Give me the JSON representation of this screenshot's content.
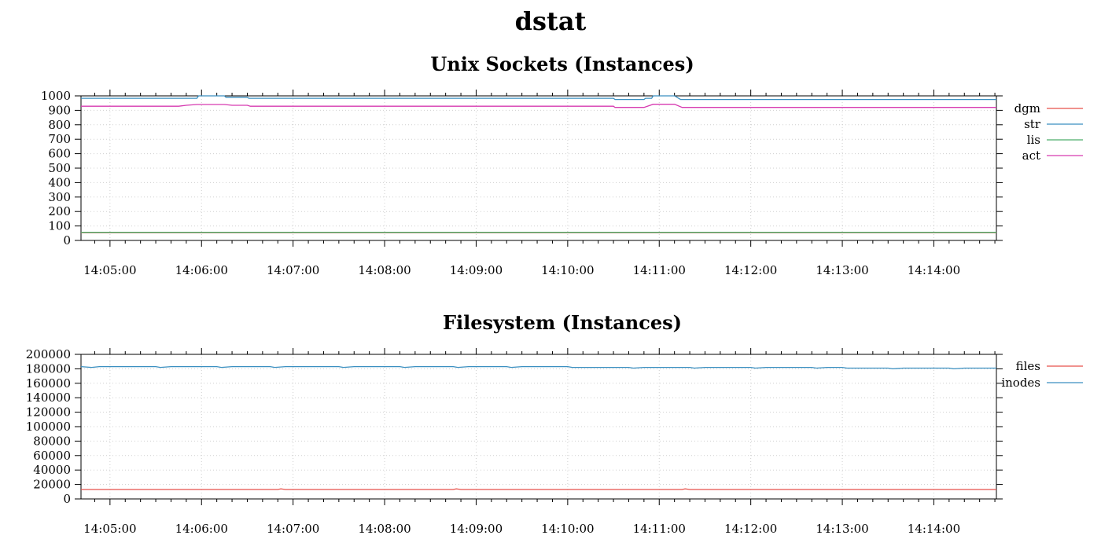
{
  "title": "dstat",
  "colors": {
    "red": "#e8514a",
    "blue": "#3a8fc0",
    "green": "#4cae6b",
    "magenta": "#d63ab0"
  },
  "chart_data": [
    {
      "type": "line",
      "title": "Unix Sockets (Instances)",
      "xlabel": "",
      "ylabel": "",
      "x_range": [
        "14:04:41",
        "14:14:41"
      ],
      "ylim": [
        0,
        1000
      ],
      "y_ticks": [
        "0",
        "100",
        "200",
        "300",
        "400",
        "500",
        "600",
        "700",
        "800",
        "900",
        "1000"
      ],
      "x_ticks": [
        "14:05:00",
        "14:06:00",
        "14:07:00",
        "14:08:00",
        "14:09:00",
        "14:10:00",
        "14:11:00",
        "14:12:00",
        "14:13:00",
        "14:14:00"
      ],
      "grid": true,
      "legend_position": "right",
      "series": [
        {
          "name": "dgm",
          "color": "#e8514a",
          "points": [
            [
              "14:04:41",
              54
            ],
            [
              "14:14:41",
              54
            ]
          ]
        },
        {
          "name": "str",
          "color": "#3a8fc0",
          "points": [
            [
              "14:04:41",
              983
            ],
            [
              "14:05:57",
              983
            ],
            [
              "14:05:58",
              1000
            ],
            [
              "14:06:15",
              1000
            ],
            [
              "14:06:16",
              990
            ],
            [
              "14:06:30",
              990
            ],
            [
              "14:06:31",
              983
            ],
            [
              "14:10:30",
              983
            ],
            [
              "14:10:31",
              975
            ],
            [
              "14:10:50",
              975
            ],
            [
              "14:10:51",
              983
            ],
            [
              "14:10:55",
              983
            ],
            [
              "14:10:56",
              1000
            ],
            [
              "14:11:10",
              1000
            ],
            [
              "14:11:14",
              975
            ],
            [
              "14:14:41",
              975
            ]
          ]
        },
        {
          "name": "lis",
          "color": "#4cae6b",
          "points": [
            [
              "14:04:41",
              56
            ],
            [
              "14:14:41",
              56
            ]
          ]
        },
        {
          "name": "act",
          "color": "#d63ab0",
          "points": [
            [
              "14:04:41",
              928
            ],
            [
              "14:05:45",
              928
            ],
            [
              "14:05:50",
              935
            ],
            [
              "14:05:57",
              940
            ],
            [
              "14:06:15",
              940
            ],
            [
              "14:06:20",
              935
            ],
            [
              "14:06:30",
              935
            ],
            [
              "14:06:32",
              928
            ],
            [
              "14:10:30",
              928
            ],
            [
              "14:10:31",
              920
            ],
            [
              "14:10:50",
              920
            ],
            [
              "14:10:56",
              942
            ],
            [
              "14:11:10",
              942
            ],
            [
              "14:11:15",
              920
            ],
            [
              "14:14:41",
              920
            ]
          ]
        }
      ]
    },
    {
      "type": "line",
      "title": "Filesystem (Instances)",
      "xlabel": "",
      "ylabel": "",
      "x_range": [
        "14:04:41",
        "14:14:41"
      ],
      "ylim": [
        0,
        200000
      ],
      "y_ticks": [
        "0",
        "20000",
        "40000",
        "60000",
        "80000",
        "100000",
        "120000",
        "140000",
        "160000",
        "180000",
        "200000"
      ],
      "x_ticks": [
        "14:05:00",
        "14:06:00",
        "14:07:00",
        "14:08:00",
        "14:09:00",
        "14:10:00",
        "14:11:00",
        "14:12:00",
        "14:13:00",
        "14:14:00"
      ],
      "grid": true,
      "legend_position": "right",
      "series": [
        {
          "name": "files",
          "color": "#e8514a",
          "points": [
            [
              "14:04:41",
              13000
            ],
            [
              "14:06:50",
              13000
            ],
            [
              "14:06:52",
              14000
            ],
            [
              "14:06:55",
              13000
            ],
            [
              "14:08:45",
              13000
            ],
            [
              "14:08:47",
              14000
            ],
            [
              "14:08:50",
              13000
            ],
            [
              "14:11:15",
              13000
            ],
            [
              "14:11:17",
              14000
            ],
            [
              "14:11:20",
              13000
            ],
            [
              "14:14:41",
              13000
            ]
          ]
        },
        {
          "name": "inodes",
          "color": "#3a8fc0",
          "points": [
            [
              "14:04:41",
              183000
            ],
            [
              "14:04:48",
              182000
            ],
            [
              "14:04:53",
              183000
            ],
            [
              "14:05:30",
              183000
            ],
            [
              "14:05:33",
              182000
            ],
            [
              "14:05:40",
              183000
            ],
            [
              "14:06:10",
              183000
            ],
            [
              "14:06:13",
              182000
            ],
            [
              "14:06:20",
              183000
            ],
            [
              "14:06:45",
              183000
            ],
            [
              "14:06:48",
              182000
            ],
            [
              "14:06:55",
              183000
            ],
            [
              "14:07:30",
              183000
            ],
            [
              "14:07:33",
              182000
            ],
            [
              "14:07:40",
              183000
            ],
            [
              "14:08:10",
              183000
            ],
            [
              "14:08:13",
              182000
            ],
            [
              "14:08:20",
              183000
            ],
            [
              "14:08:45",
              183000
            ],
            [
              "14:08:48",
              182000
            ],
            [
              "14:08:55",
              183000
            ],
            [
              "14:09:20",
              183000
            ],
            [
              "14:09:23",
              182000
            ],
            [
              "14:09:30",
              183000
            ],
            [
              "14:10:00",
              183000
            ],
            [
              "14:10:03",
              182000
            ],
            [
              "14:10:40",
              182000
            ],
            [
              "14:10:43",
              181000
            ],
            [
              "14:10:50",
              182000
            ],
            [
              "14:11:20",
              182000
            ],
            [
              "14:11:23",
              181000
            ],
            [
              "14:11:30",
              182000
            ],
            [
              "14:12:00",
              182000
            ],
            [
              "14:12:03",
              181000
            ],
            [
              "14:12:10",
              182000
            ],
            [
              "14:12:40",
              182000
            ],
            [
              "14:12:43",
              181000
            ],
            [
              "14:12:50",
              182000
            ],
            [
              "14:13:00",
              182000
            ],
            [
              "14:13:03",
              181000
            ],
            [
              "14:13:30",
              181000
            ],
            [
              "14:13:33",
              180000
            ],
            [
              "14:13:40",
              181000
            ],
            [
              "14:14:10",
              181000
            ],
            [
              "14:14:13",
              180000
            ],
            [
              "14:14:20",
              181000
            ],
            [
              "14:14:41",
              181000
            ]
          ]
        }
      ]
    }
  ]
}
